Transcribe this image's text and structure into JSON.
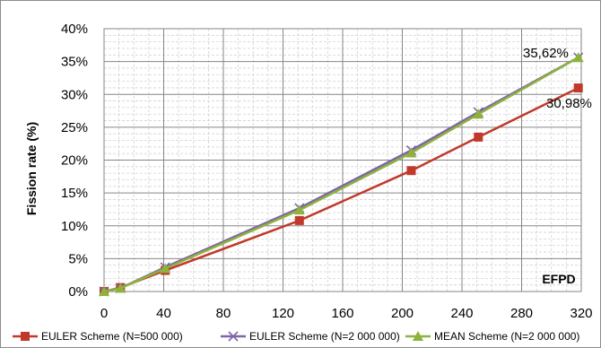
{
  "chart_data": {
    "type": "line",
    "title": "",
    "xlabel": "EFPD",
    "ylabel": "Fission rate (%)",
    "xlim": [
      0,
      320
    ],
    "ylim": [
      0,
      40
    ],
    "xticks": [
      "0",
      "40",
      "80",
      "120",
      "160",
      "200",
      "240",
      "280",
      "320"
    ],
    "yticks": [
      "0%",
      "5%",
      "10%",
      "15%",
      "20%",
      "25%",
      "30%",
      "35%",
      "40%"
    ],
    "grid": true,
    "legend_position": "bottom",
    "series": [
      {
        "name": "EULER Scheme (N=500 000)",
        "color": "#C0392B",
        "marker": "square",
        "x": [
          0,
          11,
          41,
          131,
          206,
          251,
          318
        ],
        "y": [
          0,
          0.6,
          3.2,
          10.8,
          18.4,
          23.5,
          30.98
        ]
      },
      {
        "name": "EULER Scheme (N=2 000 000)",
        "color": "#7E64A8",
        "marker": "x",
        "x": [
          0,
          11,
          41,
          131,
          206,
          251,
          318
        ],
        "y": [
          0,
          0.5,
          3.7,
          12.7,
          21.5,
          27.3,
          35.62
        ]
      },
      {
        "name": "MEAN Scheme (N=2 000 000)",
        "color": "#8DB33A",
        "marker": "triangle",
        "x": [
          0,
          11,
          41,
          131,
          206,
          251,
          318
        ],
        "y": [
          0,
          0.5,
          3.5,
          12.4,
          21.1,
          27.0,
          35.62
        ]
      }
    ],
    "annotations": [
      {
        "text": "35,62%",
        "x": 318,
        "y": 35.62
      },
      {
        "text": "30,98%",
        "x": 318,
        "y": 30.98
      }
    ]
  }
}
